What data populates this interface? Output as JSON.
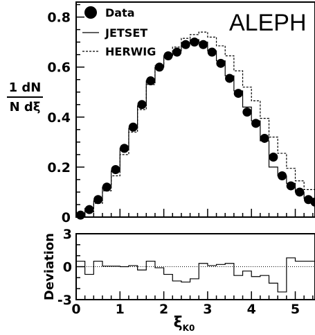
{
  "chart_data": [
    {
      "type": "line",
      "experiment_label": "ALEPH",
      "ylabel_numerator": "1 dN",
      "ylabel_denominator": "N dξ",
      "xlim": [
        0,
        5.45
      ],
      "ylim": [
        0,
        0.86
      ],
      "yticks": [
        0,
        0.2,
        0.4,
        0.6,
        0.8
      ],
      "ytick_labels": [
        "0",
        "0.2",
        "0.4",
        "0.6",
        "0.8"
      ],
      "xticks_minor_step": 0.2,
      "yticks_minor_step": 0.05,
      "legend": {
        "position": "top-left",
        "entries": [
          "Data",
          "JETSET",
          "HERWIG"
        ]
      },
      "series": [
        {
          "name": "Data",
          "style": "markers",
          "x": [
            0.1,
            0.3,
            0.5,
            0.7,
            0.9,
            1.1,
            1.3,
            1.5,
            1.7,
            1.9,
            2.1,
            2.3,
            2.5,
            2.7,
            2.9,
            3.1,
            3.3,
            3.5,
            3.7,
            3.9,
            4.1,
            4.3,
            4.5,
            4.7,
            4.9,
            5.1,
            5.3,
            5.45
          ],
          "y": [
            0.008,
            0.03,
            0.07,
            0.12,
            0.19,
            0.275,
            0.36,
            0.45,
            0.545,
            0.6,
            0.645,
            0.66,
            0.69,
            0.7,
            0.69,
            0.66,
            0.615,
            0.555,
            0.495,
            0.42,
            0.375,
            0.315,
            0.24,
            0.165,
            0.125,
            0.1,
            0.07,
            0.06
          ]
        },
        {
          "name": "JETSET",
          "style": "solid-histogram",
          "edges": [
            0,
            0.2,
            0.4,
            0.6,
            0.8,
            1.0,
            1.2,
            1.4,
            1.6,
            1.8,
            2.0,
            2.2,
            2.4,
            2.6,
            2.8,
            3.0,
            3.2,
            3.4,
            3.6,
            3.8,
            4.0,
            4.2,
            4.4,
            4.6,
            4.8,
            5.0,
            5.2,
            5.45
          ],
          "values": [
            0.01,
            0.035,
            0.065,
            0.12,
            0.185,
            0.275,
            0.355,
            0.445,
            0.545,
            0.6,
            0.645,
            0.665,
            0.695,
            0.71,
            0.7,
            0.665,
            0.625,
            0.565,
            0.505,
            0.44,
            0.385,
            0.305,
            0.2,
            0.165,
            0.135,
            0.1,
            0.075
          ]
        },
        {
          "name": "HERWIG",
          "style": "dashed-histogram",
          "edges": [
            0,
            0.2,
            0.4,
            0.6,
            0.8,
            1.0,
            1.2,
            1.4,
            1.6,
            1.8,
            2.0,
            2.2,
            2.4,
            2.6,
            2.8,
            3.0,
            3.2,
            3.4,
            3.6,
            3.8,
            4.0,
            4.2,
            4.4,
            4.6,
            4.8,
            5.0,
            5.2,
            5.45
          ],
          "values": [
            0.005,
            0.02,
            0.055,
            0.105,
            0.165,
            0.25,
            0.34,
            0.43,
            0.53,
            0.605,
            0.645,
            0.68,
            0.715,
            0.73,
            0.74,
            0.72,
            0.685,
            0.645,
            0.585,
            0.52,
            0.465,
            0.395,
            0.32,
            0.255,
            0.195,
            0.145,
            0.11
          ]
        }
      ]
    },
    {
      "type": "line",
      "ylabel": "Deviation",
      "xlabel": "ξ",
      "xlabel_subscript": "K0",
      "xlim": [
        0,
        5.45
      ],
      "ylim": [
        -3,
        3
      ],
      "xticks": [
        0,
        1,
        2,
        3,
        4,
        5
      ],
      "xtick_labels": [
        "0",
        "1",
        "2",
        "3",
        "4",
        "5"
      ],
      "yticks": [
        -3,
        0,
        3
      ],
      "ytick_labels": [
        "-3",
        "0",
        "3"
      ],
      "reference_line": 0,
      "series": [
        {
          "name": "JETSET",
          "style": "solid-histogram",
          "edges": [
            0,
            0.2,
            0.4,
            0.6,
            0.8,
            1.0,
            1.2,
            1.4,
            1.6,
            1.8,
            2.0,
            2.2,
            2.4,
            2.6,
            2.8,
            3.0,
            3.2,
            3.4,
            3.6,
            3.8,
            4.0,
            4.2,
            4.4,
            4.6,
            4.8,
            5.0,
            5.2,
            5.45
          ],
          "values": [
            0.5,
            -0.7,
            0.5,
            0.05,
            0.05,
            0.0,
            0.1,
            -0.3,
            0.5,
            -0.1,
            -0.7,
            -1.3,
            -1.4,
            -1.1,
            0.3,
            0.1,
            0.2,
            0.3,
            -0.8,
            -0.4,
            -0.9,
            -0.8,
            -1.5,
            -2.3,
            0.8,
            0.5,
            0.5
          ]
        }
      ]
    }
  ]
}
